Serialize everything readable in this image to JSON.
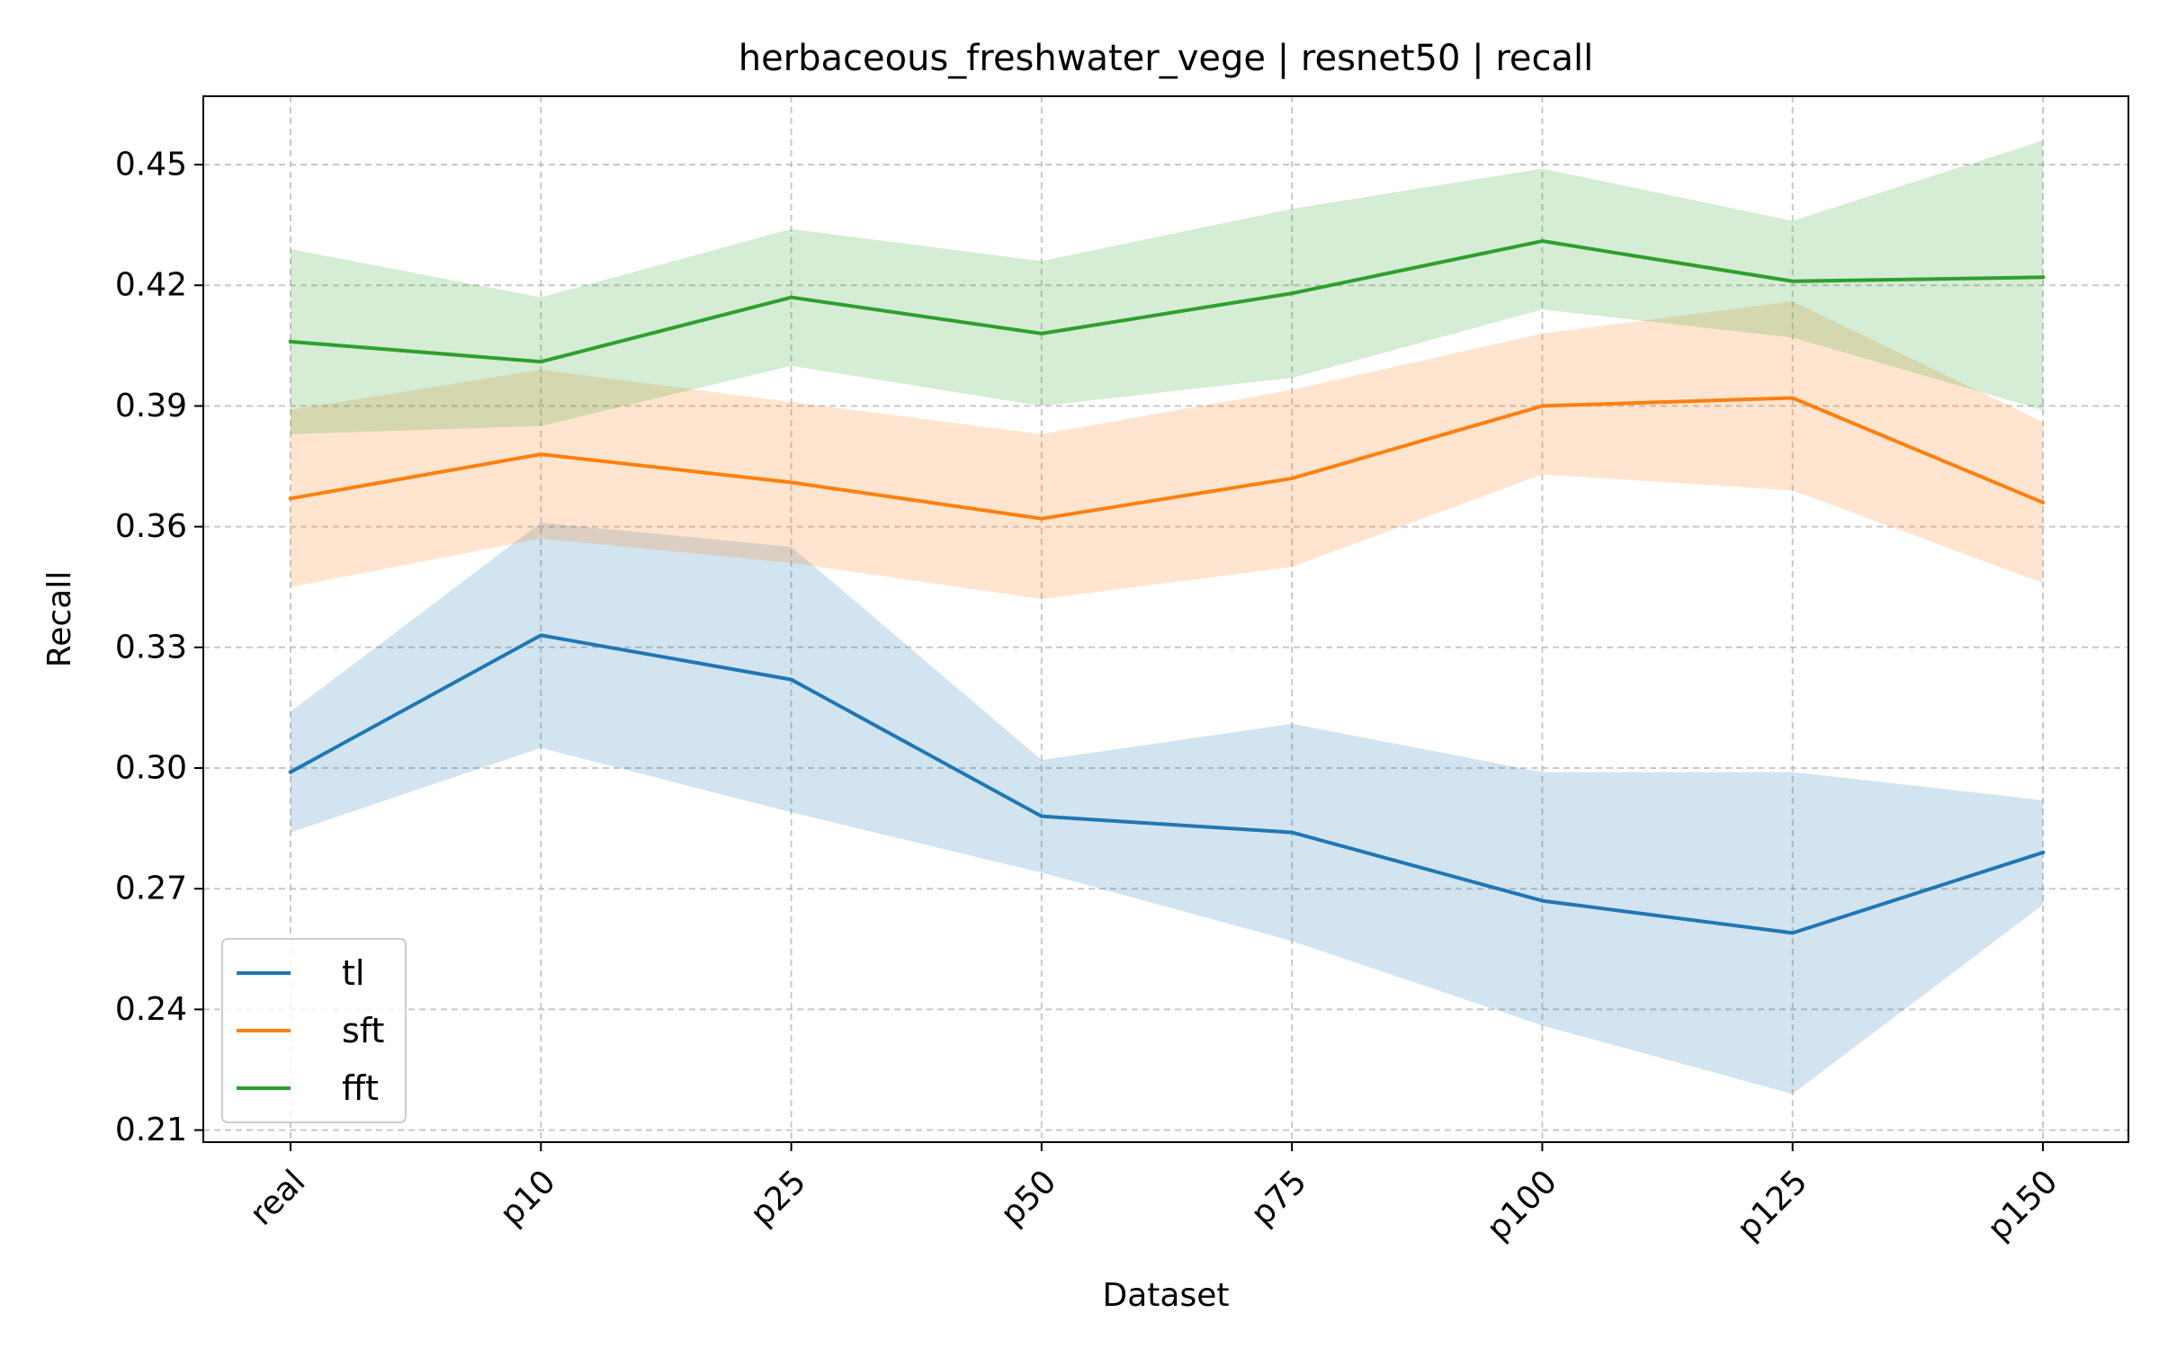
{
  "chart_data": {
    "type": "line",
    "title": "herbaceous_freshwater_vege | resnet50 | recall",
    "xlabel": "Dataset",
    "ylabel": "Recall",
    "categories": [
      "real",
      "p10",
      "p25",
      "p50",
      "p75",
      "p100",
      "p125",
      "p150"
    ],
    "ylim": [
      0.207,
      0.467
    ],
    "yticks": [
      0.21,
      0.24,
      0.27,
      0.3,
      0.33,
      0.36,
      0.39,
      0.42,
      0.45
    ],
    "ytick_labels": [
      "0.21",
      "0.24",
      "0.27",
      "0.30",
      "0.33",
      "0.36",
      "0.39",
      "0.42",
      "0.45"
    ],
    "grid": true,
    "legend_position": "lower-left",
    "series": [
      {
        "name": "tl",
        "color": "#1f77b4",
        "values": [
          0.299,
          0.333,
          0.322,
          0.288,
          0.284,
          0.267,
          0.259,
          0.279
        ],
        "lower": [
          0.284,
          0.305,
          0.289,
          0.274,
          0.257,
          0.236,
          0.219,
          0.266
        ],
        "upper": [
          0.314,
          0.361,
          0.355,
          0.302,
          0.311,
          0.299,
          0.299,
          0.292
        ]
      },
      {
        "name": "sft",
        "color": "#ff7f0e",
        "values": [
          0.367,
          0.378,
          0.371,
          0.362,
          0.372,
          0.39,
          0.392,
          0.366
        ],
        "lower": [
          0.345,
          0.357,
          0.351,
          0.342,
          0.35,
          0.373,
          0.369,
          0.346
        ],
        "upper": [
          0.389,
          0.399,
          0.391,
          0.383,
          0.394,
          0.408,
          0.416,
          0.386
        ]
      },
      {
        "name": "fft",
        "color": "#2ca02c",
        "values": [
          0.406,
          0.401,
          0.417,
          0.408,
          0.418,
          0.431,
          0.421,
          0.422
        ],
        "lower": [
          0.383,
          0.385,
          0.4,
          0.39,
          0.397,
          0.414,
          0.407,
          0.389
        ],
        "upper": [
          0.429,
          0.417,
          0.434,
          0.426,
          0.439,
          0.449,
          0.436,
          0.456
        ]
      }
    ]
  }
}
